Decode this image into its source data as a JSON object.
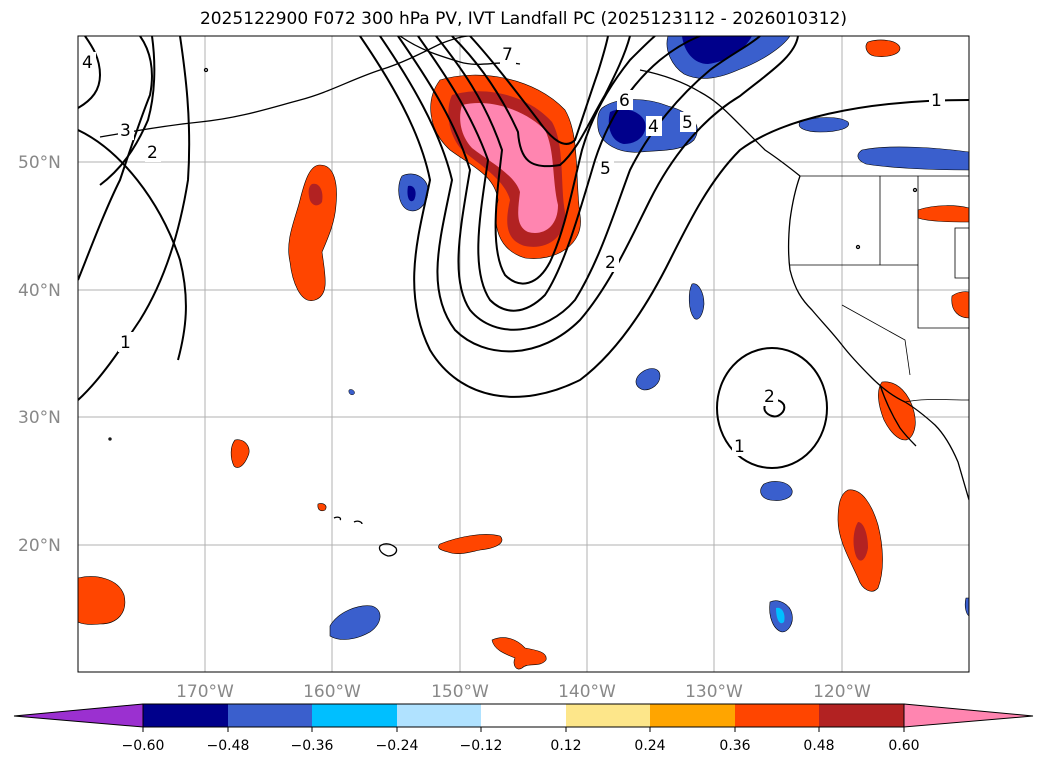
{
  "title": "2025122900 F072 300 hPa PV, IVT Landfall PC (2025123112 - 2026010312)",
  "map": {
    "lat_labels": [
      "50°N",
      "40°N",
      "30°N",
      "20°N"
    ],
    "lon_labels": [
      "170°W",
      "160°W",
      "150°W",
      "140°W",
      "130°W",
      "120°W"
    ],
    "contour_labels": [
      "4",
      "3",
      "2",
      "1",
      "7",
      "6",
      "5",
      "4",
      "5",
      "2",
      "1",
      "2",
      "1"
    ]
  },
  "colorbar": {
    "ticks": [
      "−0.60",
      "−0.48",
      "−0.36",
      "−0.24",
      "−0.12",
      "0.12",
      "0.24",
      "0.36",
      "0.48",
      "0.60"
    ],
    "colors": [
      "#9b30d0",
      "#00008b",
      "#3a5fcd",
      "#00bfff",
      "#b0e2ff",
      "#ffffff",
      "#fde68a",
      "#ffa500",
      "#ff4500",
      "#b22222",
      "#ff85b0"
    ]
  }
}
